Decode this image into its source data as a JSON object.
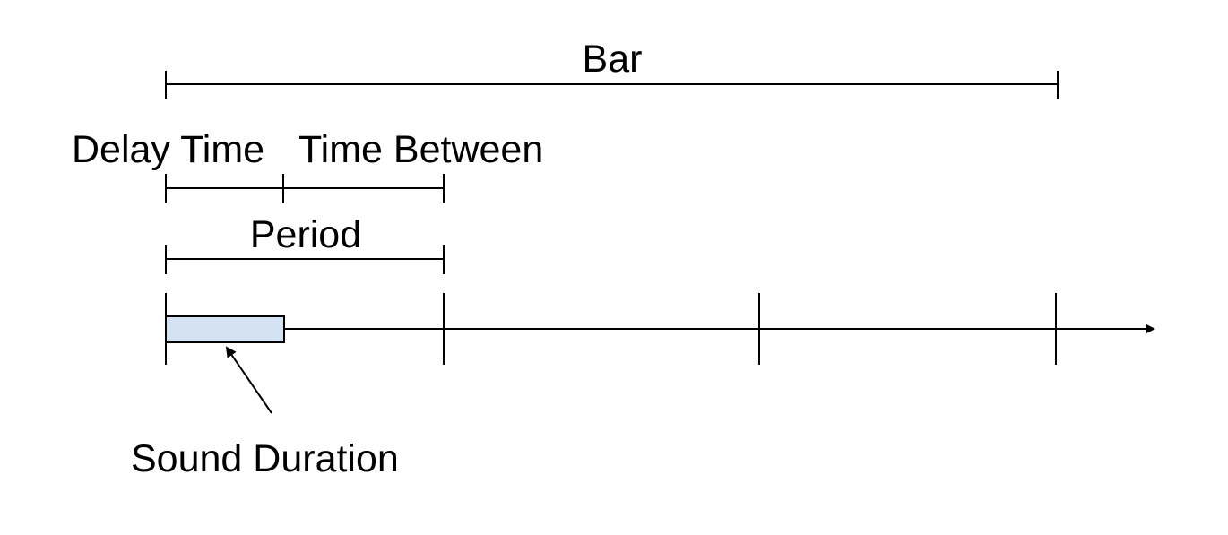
{
  "labels": {
    "bar": "Bar",
    "delay_time": "Delay Time",
    "time_between": "Time Between",
    "period": "Period",
    "sound_duration": "Sound Duration"
  },
  "colors": {
    "line": "#000000",
    "sound_fill": "#d4e2f2",
    "background": "#ffffff"
  }
}
